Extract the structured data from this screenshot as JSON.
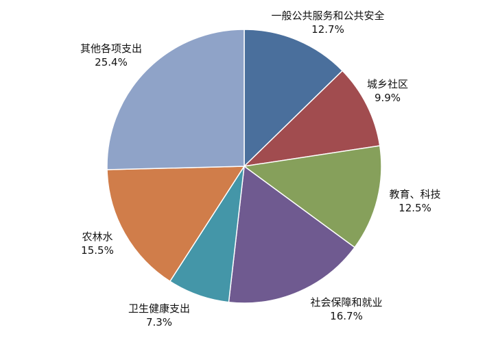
{
  "chart_data": {
    "type": "pie",
    "title": "",
    "slices": [
      {
        "label": "一般公共服务和公共安全",
        "value": 12.7,
        "value_text": "12.7%",
        "color": "#4a6f9c"
      },
      {
        "label": "城乡社区",
        "value": 9.9,
        "value_text": "9.9%",
        "color": "#a14c4f"
      },
      {
        "label": "教育、科技",
        "value": 12.5,
        "value_text": "12.5%",
        "color": "#86a05b"
      },
      {
        "label": "社会保障和就业",
        "value": 16.7,
        "value_text": "16.7%",
        "color": "#6f5a90"
      },
      {
        "label": "卫生健康支出",
        "value": 7.3,
        "value_text": "7.3%",
        "color": "#4496a8"
      },
      {
        "label": "农林水",
        "value": 15.5,
        "value_text": "15.5%",
        "color": "#d07d4a"
      },
      {
        "label": "其他各项支出",
        "value": 25.4,
        "value_text": "25.4%",
        "color": "#8fa3c8"
      }
    ],
    "start": "12 o'clock",
    "direction": "clockwise",
    "legend": "none"
  }
}
